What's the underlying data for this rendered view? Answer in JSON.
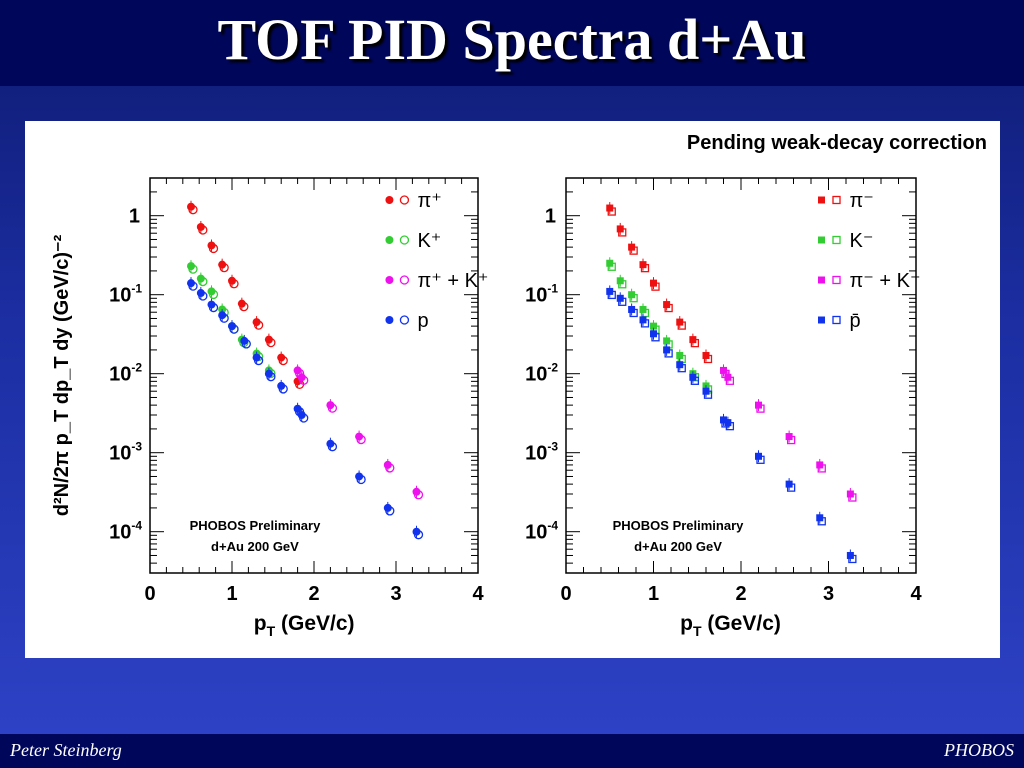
{
  "slide": {
    "title": "TOF PID Spectra d+Au",
    "footer_left": "Peter Steinberg",
    "footer_right": "PHOBOS",
    "note": "Pending weak-decay correction"
  },
  "colors": {
    "pion": "#ee1111",
    "kaon": "#33cc33",
    "piK": "#ee11ee",
    "proton": "#1133ee"
  },
  "chart_data": [
    {
      "type": "scatter",
      "yscale": "log",
      "xlim": [
        0,
        4
      ],
      "ylim": [
        3e-05,
        3
      ],
      "x_ticks": [
        "0",
        "1",
        "2",
        "3",
        "4"
      ],
      "y_tick_labels": [
        {
          "base": "1",
          "exp": ""
        },
        {
          "base": "10",
          "exp": "-1"
        },
        {
          "base": "10",
          "exp": "-2"
        },
        {
          "base": "10",
          "exp": "-3"
        },
        {
          "base": "10",
          "exp": "-4"
        }
      ],
      "xlabel": {
        "main": "p",
        "sub": "T",
        "rest": " (GeV/c)"
      },
      "ylabel": "d²N/2π p_T dp_T dy (GeV/c)⁻²",
      "annotation": [
        "PHOBOS Preliminary",
        "d+Au 200 GeV"
      ],
      "legend_position": "top-right",
      "series": [
        {
          "legend": "π⁺",
          "color": "#ee1111",
          "marker": "circle",
          "x": [
            0.5,
            0.62,
            0.75,
            0.88,
            1.0,
            1.12,
            1.3,
            1.45,
            1.6,
            1.8
          ],
          "y": [
            1.3,
            0.72,
            0.42,
            0.24,
            0.15,
            0.077,
            0.045,
            0.027,
            0.016,
            0.008
          ]
        },
        {
          "legend": "K⁺",
          "color": "#33cc33",
          "marker": "circle",
          "x": [
            0.5,
            0.62,
            0.75,
            0.88,
            1.0,
            1.12,
            1.3,
            1.45
          ],
          "y": [
            0.23,
            0.16,
            0.11,
            0.065,
            0.04,
            0.027,
            0.018,
            0.011
          ]
        },
        {
          "legend": "π⁺ + K⁺",
          "color": "#ee11ee",
          "marker": "circle",
          "x": [
            1.8,
            1.85,
            2.2,
            2.55,
            2.9,
            3.25
          ],
          "y": [
            0.011,
            0.009,
            0.004,
            0.0016,
            0.0007,
            0.00032
          ]
        },
        {
          "legend": "p",
          "color": "#1133ee",
          "marker": "circle",
          "x": [
            0.5,
            0.62,
            0.75,
            0.88,
            1.0,
            1.15,
            1.3,
            1.45,
            1.6,
            1.8,
            1.85,
            2.2,
            2.55,
            2.9,
            3.25
          ],
          "y": [
            0.14,
            0.105,
            0.075,
            0.055,
            0.04,
            0.026,
            0.016,
            0.01,
            0.007,
            0.0036,
            0.003,
            0.0013,
            0.0005,
            0.0002,
            0.0001
          ]
        }
      ]
    },
    {
      "type": "scatter",
      "yscale": "log",
      "xlim": [
        0,
        4
      ],
      "ylim": [
        3e-05,
        3
      ],
      "x_ticks": [
        "0",
        "1",
        "2",
        "3",
        "4"
      ],
      "y_tick_labels": [
        {
          "base": "1",
          "exp": ""
        },
        {
          "base": "10",
          "exp": "-1"
        },
        {
          "base": "10",
          "exp": "-2"
        },
        {
          "base": "10",
          "exp": "-3"
        },
        {
          "base": "10",
          "exp": "-4"
        }
      ],
      "xlabel": {
        "main": "p",
        "sub": "T",
        "rest": " (GeV/c)"
      },
      "annotation": [
        "PHOBOS Preliminary",
        "d+Au 200 GeV"
      ],
      "legend_position": "top-right",
      "series": [
        {
          "legend": "π⁻",
          "color": "#ee1111",
          "marker": "square",
          "x": [
            0.5,
            0.62,
            0.75,
            0.88,
            1.0,
            1.15,
            1.3,
            1.45,
            1.6
          ],
          "y": [
            1.25,
            0.68,
            0.4,
            0.24,
            0.14,
            0.075,
            0.045,
            0.027,
            0.017
          ]
        },
        {
          "legend": "K⁻",
          "color": "#33cc33",
          "marker": "square",
          "x": [
            0.5,
            0.62,
            0.75,
            0.88,
            1.0,
            1.15,
            1.3,
            1.45,
            1.6
          ],
          "y": [
            0.25,
            0.15,
            0.1,
            0.065,
            0.04,
            0.026,
            0.017,
            0.01,
            0.007
          ]
        },
        {
          "legend": "π⁻ + K⁻",
          "color": "#ee11ee",
          "marker": "square",
          "x": [
            1.8,
            1.85,
            2.2,
            2.55,
            2.9,
            3.25
          ],
          "y": [
            0.011,
            0.009,
            0.004,
            0.0016,
            0.0007,
            0.0003
          ]
        },
        {
          "legend": "p̄",
          "color": "#1133ee",
          "marker": "square",
          "x": [
            0.5,
            0.62,
            0.75,
            0.88,
            1.0,
            1.15,
            1.3,
            1.45,
            1.6,
            1.8,
            1.85,
            2.2,
            2.55,
            2.9,
            3.25
          ],
          "y": [
            0.11,
            0.09,
            0.065,
            0.048,
            0.032,
            0.02,
            0.013,
            0.009,
            0.006,
            0.0026,
            0.0024,
            0.0009,
            0.0004,
            0.00015,
            5e-05
          ]
        }
      ]
    }
  ]
}
